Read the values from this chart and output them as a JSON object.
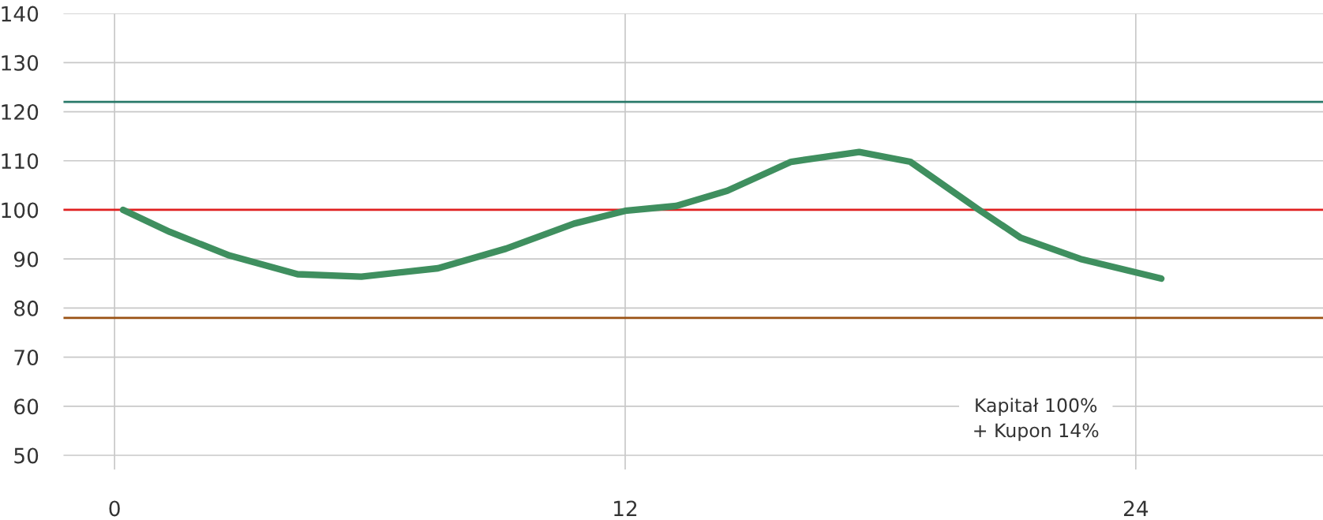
{
  "chart_data": {
    "type": "line",
    "x": [
      0.2,
      1.3,
      2.7,
      4.3,
      5.8,
      7.6,
      9.2,
      10.8,
      12,
      13.2,
      14.4,
      15.9,
      17.5,
      18.7,
      20.3,
      21.3,
      22.7,
      24.6
    ],
    "series": [
      {
        "color": "#3f8f5f",
        "values": [
          100,
          95.5,
          90.7,
          86.9,
          86.4,
          88.1,
          92.1,
          97.2,
          99.8,
          100.8,
          103.9,
          109.8,
          111.8,
          109.8,
          100.1,
          94.3,
          90.0,
          86.0
        ]
      }
    ],
    "xlim": [
      -1.2,
      28.4
    ],
    "xticks": [
      0,
      12,
      24
    ],
    "ylim": [
      47.1,
      140
    ],
    "yticks": [
      50,
      60,
      70,
      80,
      90,
      100,
      110,
      120,
      130,
      140
    ],
    "ref_lines": [
      {
        "axis": "y",
        "value": 122,
        "color": "#2a7a6a"
      },
      {
        "axis": "y",
        "value": 100,
        "color": "#e02020"
      },
      {
        "axis": "y",
        "value": 78,
        "color": "#9a5214"
      }
    ],
    "annotations": [
      "Kapitał 100%\n+ Kupon 14%"
    ],
    "grid": true,
    "legend": false,
    "marker": "none",
    "line_style": "solid"
  }
}
